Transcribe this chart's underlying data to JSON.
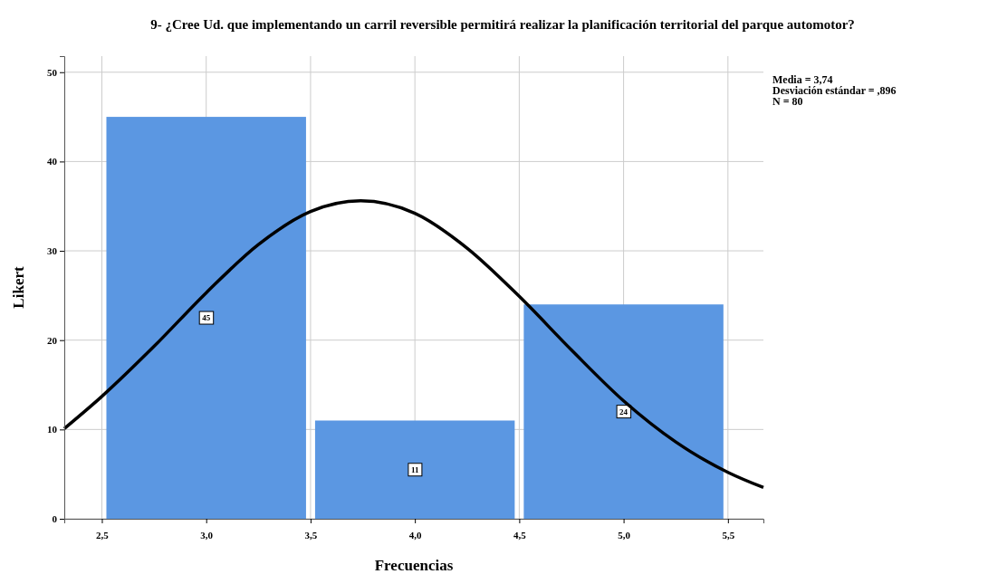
{
  "chart_data": {
    "type": "histogram",
    "title": "9- ¿Cree Ud. que implementando un carril reversible permitirá realizar la planificación territorial del parque automotor?",
    "xlabel": "Frecuencias",
    "ylabel": "Likert",
    "bins": [
      2.5,
      3.5,
      4.5,
      5.5
    ],
    "values": [
      45,
      11,
      24
    ],
    "color": "#5b97e2",
    "value_labels": [
      "45",
      "11",
      "24"
    ],
    "series": [
      {
        "type": "line",
        "color": "#000000",
        "x": [
          2.32,
          2.5,
          2.75,
          3.0,
          3.25,
          3.5,
          3.74,
          4.0,
          4.25,
          4.5,
          4.75,
          5.0,
          5.25,
          5.5,
          5.67
        ],
        "values": [
          10.1,
          13.7,
          19.3,
          25.3,
          30.7,
          34.4,
          35.6,
          34.2,
          30.3,
          24.9,
          18.9,
          13.2,
          8.6,
          5.2,
          3.5
        ]
      }
    ],
    "xlim": [
      2.32,
      5.67
    ],
    "ylim": [
      0,
      51.8
    ],
    "xticks": [
      {
        "value": 2.5,
        "label": "2,5"
      },
      {
        "value": 3,
        "label": "3,0"
      },
      {
        "value": 3.5,
        "label": "3,5"
      },
      {
        "value": 4,
        "label": "4,0"
      },
      {
        "value": 4.5,
        "label": "4,5"
      },
      {
        "value": 5,
        "label": "5,0"
      },
      {
        "value": 5.5,
        "label": "5,5"
      }
    ],
    "yticks": [
      0,
      10,
      20,
      30,
      40,
      50
    ],
    "grid": true,
    "annotations": [
      "Media = 3,74",
      "Desviación estándar = ,896",
      "N = 80"
    ]
  }
}
